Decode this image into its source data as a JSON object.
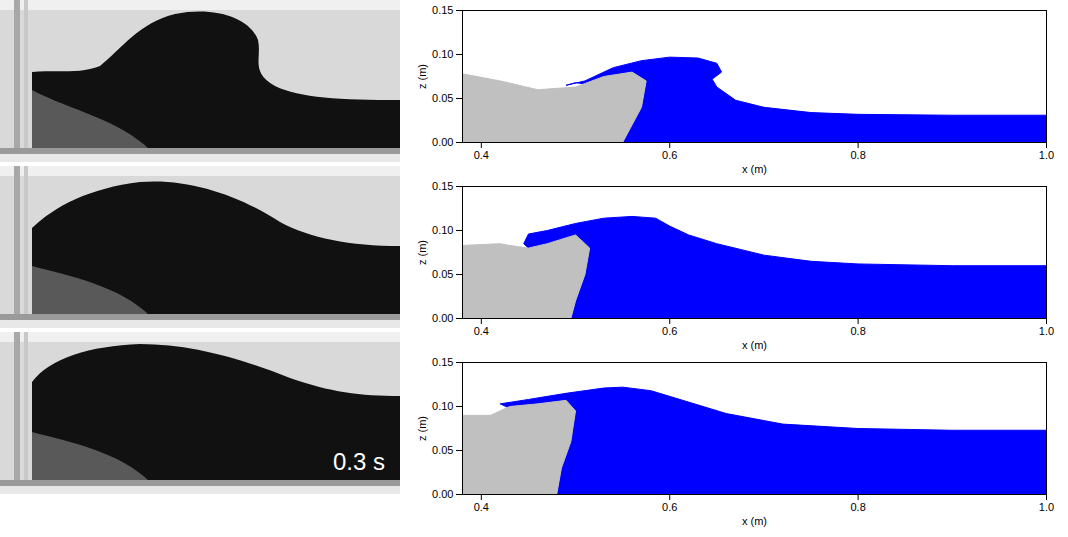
{
  "photo": {
    "label": "0.3 s"
  },
  "chart_data": [
    {
      "type": "area",
      "x_label": "x (m)",
      "y_label": "z (m)",
      "xlim": [
        0.38,
        1.0
      ],
      "ylim": [
        0,
        0.15
      ],
      "xticks": [
        0.4,
        0.6,
        0.8,
        {
          "value": 1.0,
          "label": "1.0"
        }
      ],
      "yticks": [
        {
          "value": 0,
          "label": "0.00"
        },
        0.05,
        {
          "value": 0.1,
          "label": "0.10"
        },
        0.15
      ],
      "grid": false,
      "series": [
        {
          "color": "#0000ff",
          "x": [
            0.55,
            0.555,
            0.57,
            0.575,
            0.56,
            0.54,
            0.52,
            0.5,
            0.49,
            0.51,
            0.54,
            0.57,
            0.6,
            0.63,
            0.65,
            0.655,
            0.645,
            0.65,
            0.67,
            0.7,
            0.75,
            0.8,
            0.9,
            1.0,
            1.0
          ],
          "y": [
            0,
            0.01,
            0.04,
            0.07,
            0.08,
            0.072,
            0.065,
            0.068,
            0.065,
            0.07,
            0.085,
            0.093,
            0.097,
            0.096,
            0.09,
            0.08,
            0.072,
            0.063,
            0.048,
            0.04,
            0.034,
            0.032,
            0.031,
            0.031,
            0
          ]
        },
        {
          "color": "#c0c0c0",
          "x": [
            0.38,
            0.38,
            0.42,
            0.46,
            0.5,
            0.53,
            0.56,
            0.575,
            0.57,
            0.555,
            0.55
          ],
          "y": [
            0,
            0.078,
            0.07,
            0.06,
            0.063,
            0.075,
            0.08,
            0.07,
            0.04,
            0.01,
            0
          ]
        }
      ]
    },
    {
      "type": "area",
      "x_label": "x (m)",
      "y_label": "z (m)",
      "xlim": [
        0.38,
        1.0
      ],
      "ylim": [
        0,
        0.15
      ],
      "xticks": [
        0.4,
        0.6,
        0.8,
        {
          "value": 1.0,
          "label": "1.0"
        }
      ],
      "yticks": [
        {
          "value": 0,
          "label": "0.00"
        },
        0.05,
        {
          "value": 0.1,
          "label": "0.10"
        },
        0.15
      ],
      "grid": false,
      "series": [
        {
          "color": "#0000ff",
          "x": [
            0.495,
            0.5,
            0.51,
            0.515,
            0.5,
            0.48,
            0.465,
            0.455,
            0.445,
            0.45,
            0.47,
            0.5,
            0.53,
            0.56,
            0.585,
            0.6,
            0.62,
            0.65,
            0.7,
            0.75,
            0.8,
            0.9,
            1.0,
            1.0
          ],
          "y": [
            0,
            0.02,
            0.05,
            0.08,
            0.085,
            0.075,
            0.068,
            0.075,
            0.085,
            0.096,
            0.1,
            0.108,
            0.114,
            0.116,
            0.114,
            0.105,
            0.095,
            0.085,
            0.072,
            0.065,
            0.062,
            0.06,
            0.06,
            0
          ]
        },
        {
          "color": "#c0c0c0",
          "x": [
            0.38,
            0.38,
            0.42,
            0.43,
            0.45,
            0.47,
            0.5,
            0.515,
            0.51,
            0.5,
            0.495
          ],
          "y": [
            0,
            0.083,
            0.085,
            0.083,
            0.08,
            0.085,
            0.095,
            0.08,
            0.05,
            0.02,
            0
          ]
        }
      ]
    },
    {
      "type": "area",
      "x_label": "x (m)",
      "y_label": "z (m)",
      "xlim": [
        0.38,
        1.0
      ],
      "ylim": [
        0,
        0.15
      ],
      "xticks": [
        0.4,
        0.6,
        0.8,
        {
          "value": 1.0,
          "label": "1.0"
        }
      ],
      "yticks": [
        {
          "value": 0,
          "label": "0.00"
        },
        0.05,
        {
          "value": 0.1,
          "label": "0.10"
        },
        0.15
      ],
      "grid": false,
      "series": [
        {
          "color": "#0000ff",
          "x": [
            0.48,
            0.485,
            0.495,
            0.5,
            0.49,
            0.47,
            0.455,
            0.445,
            0.43,
            0.42,
            0.45,
            0.49,
            0.53,
            0.55,
            0.58,
            0.62,
            0.66,
            0.72,
            0.8,
            0.9,
            1.0,
            1.0
          ],
          "y": [
            0,
            0.03,
            0.06,
            0.095,
            0.104,
            0.09,
            0.078,
            0.09,
            0.098,
            0.103,
            0.108,
            0.115,
            0.121,
            0.122,
            0.118,
            0.105,
            0.092,
            0.08,
            0.075,
            0.073,
            0.073,
            0
          ]
        },
        {
          "color": "#c0c0c0",
          "x": [
            0.38,
            0.38,
            0.41,
            0.43,
            0.46,
            0.49,
            0.5,
            0.495,
            0.485,
            0.48
          ],
          "y": [
            0,
            0.09,
            0.09,
            0.1,
            0.103,
            0.107,
            0.095,
            0.06,
            0.03,
            0
          ]
        }
      ]
    }
  ]
}
